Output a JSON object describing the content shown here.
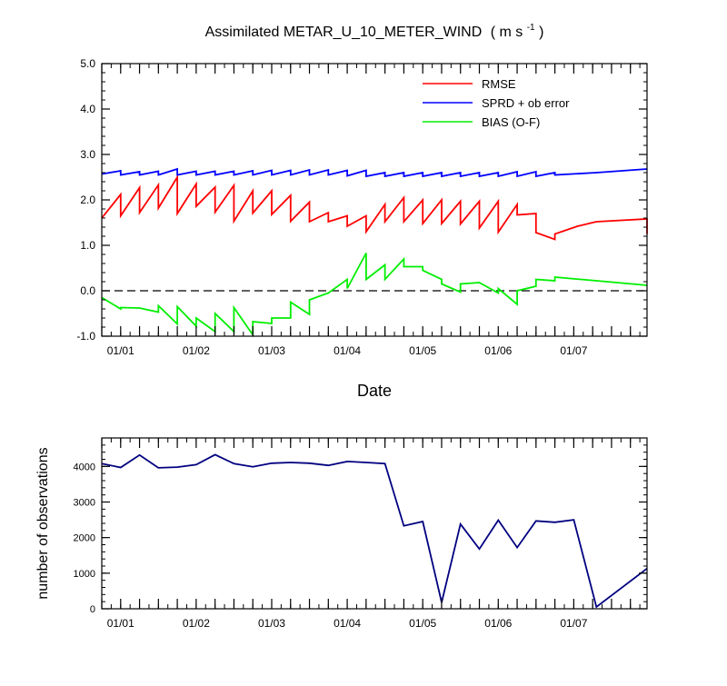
{
  "chart_data": [
    {
      "type": "line",
      "title": "Assimilated METAR_U_10_METER_WIND",
      "title_units": "( m s",
      "title_units_sup": "-1",
      "title_units_close": " )",
      "xlabel": "Date",
      "ylabel": "",
      "ylim": [
        -1.0,
        5.0
      ],
      "xlim": [
        0.0,
        7.22
      ],
      "y_ticks": [
        -1.0,
        0.0,
        1.0,
        2.0,
        3.0,
        4.0,
        5.0
      ],
      "y_tick_labels": [
        "-1.0",
        "0.0",
        "1.0",
        "2.0",
        "3.0",
        "4.0",
        "5.0"
      ],
      "x_ticks": [
        0.25,
        1.25,
        2.25,
        3.25,
        4.25,
        5.25,
        6.25
      ],
      "x_tick_labels": [
        "01/01",
        "01/02",
        "01/03",
        "01/04",
        "01/05",
        "01/06",
        "01/07"
      ],
      "zero_line": 0.0,
      "legend_position": "top-right",
      "series": [
        {
          "name": "RMSE",
          "color": "#ff0000",
          "points": [
            [
              0.0,
              1.6
            ],
            [
              0.25,
              2.12
            ],
            [
              0.25,
              1.65
            ],
            [
              0.5,
              2.27
            ],
            [
              0.5,
              1.72
            ],
            [
              0.75,
              2.33
            ],
            [
              0.75,
              1.82
            ],
            [
              1.0,
              2.5
            ],
            [
              1.0,
              1.7
            ],
            [
              1.25,
              2.35
            ],
            [
              1.25,
              1.86
            ],
            [
              1.5,
              2.28
            ],
            [
              1.5,
              1.73
            ],
            [
              1.75,
              2.32
            ],
            [
              1.75,
              1.53
            ],
            [
              2.0,
              2.2
            ],
            [
              2.0,
              1.71
            ],
            [
              2.25,
              2.2
            ],
            [
              2.25,
              1.68
            ],
            [
              2.5,
              2.1
            ],
            [
              2.5,
              1.53
            ],
            [
              2.75,
              1.95
            ],
            [
              2.75,
              1.52
            ],
            [
              3.0,
              1.72
            ],
            [
              3.0,
              1.52
            ],
            [
              3.25,
              1.65
            ],
            [
              3.25,
              1.42
            ],
            [
              3.5,
              1.65
            ],
            [
              3.5,
              1.3
            ],
            [
              3.75,
              1.9
            ],
            [
              3.75,
              1.52
            ],
            [
              4.0,
              2.05
            ],
            [
              4.0,
              1.52
            ],
            [
              4.25,
              2.0
            ],
            [
              4.25,
              1.48
            ],
            [
              4.5,
              2.0
            ],
            [
              4.5,
              1.48
            ],
            [
              4.75,
              1.97
            ],
            [
              4.75,
              1.47
            ],
            [
              5.0,
              1.97
            ],
            [
              5.0,
              1.38
            ],
            [
              5.25,
              1.97
            ],
            [
              5.25,
              1.29
            ],
            [
              5.5,
              1.9
            ],
            [
              5.5,
              1.67
            ],
            [
              5.75,
              1.7
            ],
            [
              5.75,
              1.28
            ],
            [
              6.0,
              1.13
            ],
            [
              6.0,
              1.25
            ],
            [
              6.3,
              1.42
            ],
            [
              6.55,
              1.52
            ],
            [
              7.22,
              1.58
            ],
            [
              7.22,
              1.25
            ]
          ]
        },
        {
          "name": "SPRD + ob error",
          "color": "#0000ff",
          "points": [
            [
              0.0,
              2.57
            ],
            [
              0.25,
              2.64
            ],
            [
              0.25,
              2.55
            ],
            [
              0.5,
              2.62
            ],
            [
              0.5,
              2.55
            ],
            [
              0.75,
              2.63
            ],
            [
              0.75,
              2.55
            ],
            [
              1.0,
              2.68
            ],
            [
              1.0,
              2.55
            ],
            [
              1.25,
              2.63
            ],
            [
              1.25,
              2.55
            ],
            [
              1.5,
              2.63
            ],
            [
              1.5,
              2.55
            ],
            [
              1.75,
              2.63
            ],
            [
              1.75,
              2.55
            ],
            [
              2.0,
              2.64
            ],
            [
              2.0,
              2.55
            ],
            [
              2.25,
              2.65
            ],
            [
              2.25,
              2.55
            ],
            [
              2.5,
              2.65
            ],
            [
              2.5,
              2.55
            ],
            [
              2.75,
              2.66
            ],
            [
              2.75,
              2.55
            ],
            [
              3.0,
              2.66
            ],
            [
              3.0,
              2.55
            ],
            [
              3.25,
              2.65
            ],
            [
              3.25,
              2.53
            ],
            [
              3.5,
              2.65
            ],
            [
              3.5,
              2.52
            ],
            [
              3.75,
              2.6
            ],
            [
              3.75,
              2.52
            ],
            [
              4.0,
              2.6
            ],
            [
              4.0,
              2.52
            ],
            [
              4.25,
              2.6
            ],
            [
              4.25,
              2.52
            ],
            [
              4.5,
              2.6
            ],
            [
              4.5,
              2.52
            ],
            [
              4.75,
              2.6
            ],
            [
              4.75,
              2.52
            ],
            [
              5.0,
              2.6
            ],
            [
              5.0,
              2.52
            ],
            [
              5.25,
              2.6
            ],
            [
              5.25,
              2.52
            ],
            [
              5.5,
              2.62
            ],
            [
              5.5,
              2.52
            ],
            [
              5.75,
              2.62
            ],
            [
              5.75,
              2.52
            ],
            [
              6.0,
              2.6
            ],
            [
              6.0,
              2.55
            ],
            [
              6.55,
              2.6
            ],
            [
              7.22,
              2.68
            ]
          ]
        },
        {
          "name": "BIAS (O-F)",
          "color": "#00ee00",
          "points": [
            [
              0.0,
              -0.15
            ],
            [
              0.25,
              -0.4
            ],
            [
              0.25,
              -0.37
            ],
            [
              0.5,
              -0.38
            ],
            [
              0.75,
              -0.47
            ],
            [
              0.75,
              -0.33
            ],
            [
              1.0,
              -0.73
            ],
            [
              1.0,
              -0.35
            ],
            [
              1.25,
              -0.78
            ],
            [
              1.25,
              -0.6
            ],
            [
              1.5,
              -0.9
            ],
            [
              1.5,
              -0.5
            ],
            [
              1.75,
              -0.9
            ],
            [
              1.75,
              -0.37
            ],
            [
              2.0,
              -0.97
            ],
            [
              2.0,
              -0.68
            ],
            [
              2.25,
              -0.72
            ],
            [
              2.25,
              -0.6
            ],
            [
              2.5,
              -0.6
            ],
            [
              2.5,
              -0.25
            ],
            [
              2.75,
              -0.52
            ],
            [
              2.75,
              -0.2
            ],
            [
              3.0,
              -0.05
            ],
            [
              3.25,
              0.25
            ],
            [
              3.25,
              0.05
            ],
            [
              3.5,
              0.83
            ],
            [
              3.5,
              0.25
            ],
            [
              3.75,
              0.57
            ],
            [
              3.75,
              0.25
            ],
            [
              4.0,
              0.7
            ],
            [
              4.0,
              0.53
            ],
            [
              4.25,
              0.53
            ],
            [
              4.25,
              0.45
            ],
            [
              4.5,
              0.25
            ],
            [
              4.5,
              0.15
            ],
            [
              4.75,
              -0.03
            ],
            [
              4.75,
              0.15
            ],
            [
              5.0,
              0.18
            ],
            [
              5.25,
              -0.05
            ],
            [
              5.25,
              0.05
            ],
            [
              5.5,
              -0.3
            ],
            [
              5.5,
              0.0
            ],
            [
              5.75,
              0.1
            ],
            [
              5.75,
              0.25
            ],
            [
              6.0,
              0.22
            ],
            [
              6.0,
              0.3
            ],
            [
              6.55,
              0.22
            ],
            [
              7.22,
              0.12
            ]
          ]
        }
      ]
    },
    {
      "type": "line",
      "title": "",
      "xlabel": "",
      "ylabel": "number of observations",
      "ylim": [
        0,
        4800
      ],
      "xlim": [
        0.0,
        7.22
      ],
      "y_ticks": [
        0,
        1000,
        2000,
        3000,
        4000
      ],
      "y_tick_labels": [
        "0",
        "1000",
        "2000",
        "3000",
        "4000"
      ],
      "x_ticks": [
        0.25,
        1.25,
        2.25,
        3.25,
        4.25,
        5.25,
        6.25
      ],
      "x_tick_labels": [
        "01/01",
        "01/02",
        "01/03",
        "01/04",
        "01/05",
        "01/06",
        "01/07"
      ],
      "series": [
        {
          "name": "observations",
          "color": "#000080",
          "points": [
            [
              0.0,
              4080
            ],
            [
              0.25,
              3970
            ],
            [
              0.5,
              4320
            ],
            [
              0.75,
              3960
            ],
            [
              1.0,
              3980
            ],
            [
              1.25,
              4050
            ],
            [
              1.5,
              4330
            ],
            [
              1.75,
              4080
            ],
            [
              2.0,
              3990
            ],
            [
              2.25,
              4090
            ],
            [
              2.5,
              4110
            ],
            [
              2.75,
              4090
            ],
            [
              3.0,
              4030
            ],
            [
              3.25,
              4140
            ],
            [
              3.5,
              4110
            ],
            [
              3.75,
              4080
            ],
            [
              4.0,
              2330
            ],
            [
              4.25,
              2450
            ],
            [
              4.5,
              180
            ],
            [
              4.75,
              2380
            ],
            [
              5.0,
              1680
            ],
            [
              5.25,
              2490
            ],
            [
              5.5,
              1720
            ],
            [
              5.75,
              2470
            ],
            [
              6.0,
              2430
            ],
            [
              6.25,
              2500
            ],
            [
              6.55,
              50
            ],
            [
              7.22,
              1130
            ]
          ]
        }
      ]
    }
  ]
}
